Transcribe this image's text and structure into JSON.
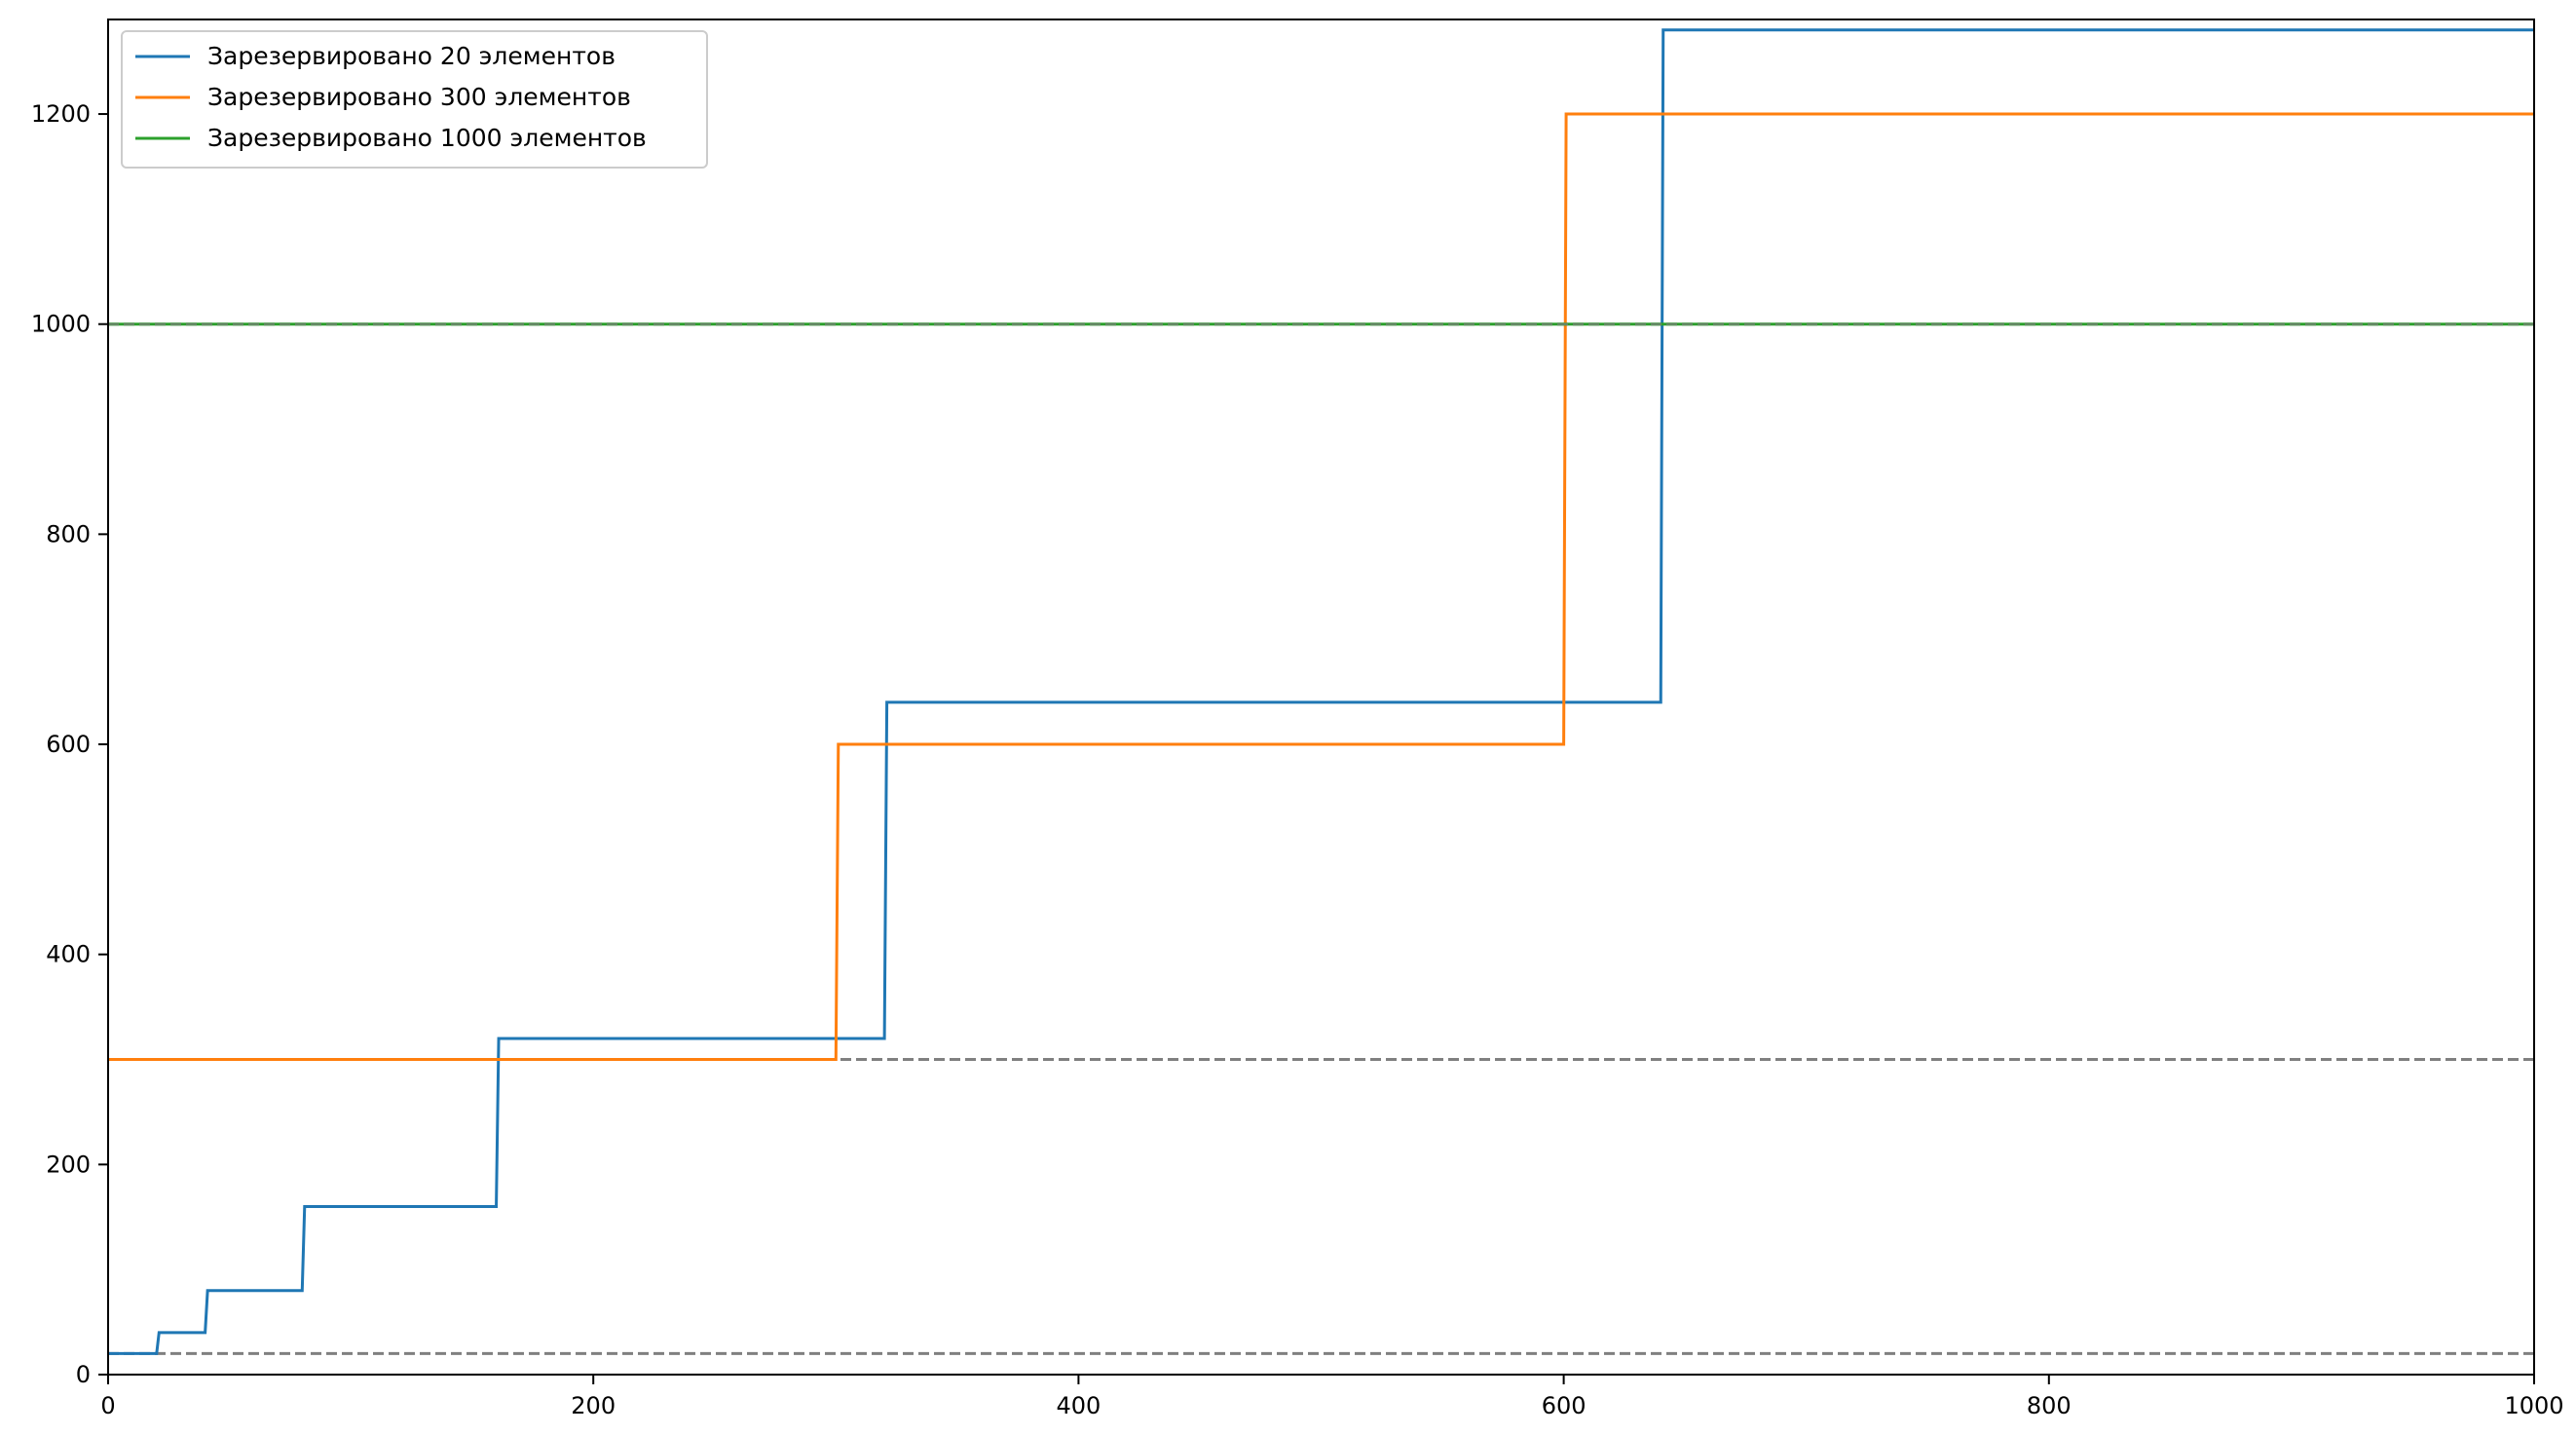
{
  "chart_data": {
    "type": "line",
    "title": "",
    "xlabel": "",
    "ylabel": "",
    "xlim": [
      0,
      1000
    ],
    "ylim": [
      0,
      1290
    ],
    "x_ticks": [
      0,
      200,
      400,
      600,
      800,
      1000
    ],
    "y_ticks": [
      0,
      200,
      400,
      600,
      800,
      1000,
      1200
    ],
    "x_tick_labels": [
      "0",
      "200",
      "400",
      "600",
      "800",
      "1000"
    ],
    "y_tick_labels": [
      "0",
      "200",
      "400",
      "600",
      "800",
      "1000",
      "1200"
    ],
    "grid": false,
    "legend_position": "upper-left",
    "series": [
      {
        "name": "Зарезервировано 20 элементов",
        "color": "#1f77b4",
        "style": "solid",
        "x": [
          0,
          20,
          21,
          40,
          41,
          80,
          81,
          160,
          161,
          320,
          321,
          640,
          641,
          1000
        ],
        "y": [
          20,
          20,
          40,
          40,
          80,
          80,
          160,
          160,
          320,
          320,
          640,
          640,
          1280,
          1280
        ]
      },
      {
        "name": "Зарезервировано 300 элементов",
        "color": "#ff7f0e",
        "style": "solid",
        "x": [
          0,
          300,
          301,
          600,
          601,
          1000
        ],
        "y": [
          300,
          300,
          600,
          600,
          1200,
          1200
        ]
      },
      {
        "name": "Зарезервировано 1000 элементов",
        "color": "#2ca02c",
        "style": "solid",
        "x": [
          0,
          1000
        ],
        "y": [
          1000,
          1000
        ]
      }
    ],
    "reference_lines": [
      {
        "y": 20,
        "color": "#808080",
        "style": "dashed"
      },
      {
        "y": 300,
        "color": "#808080",
        "style": "dashed"
      },
      {
        "y": 1000,
        "color": "#808080",
        "style": "dashed"
      }
    ]
  }
}
